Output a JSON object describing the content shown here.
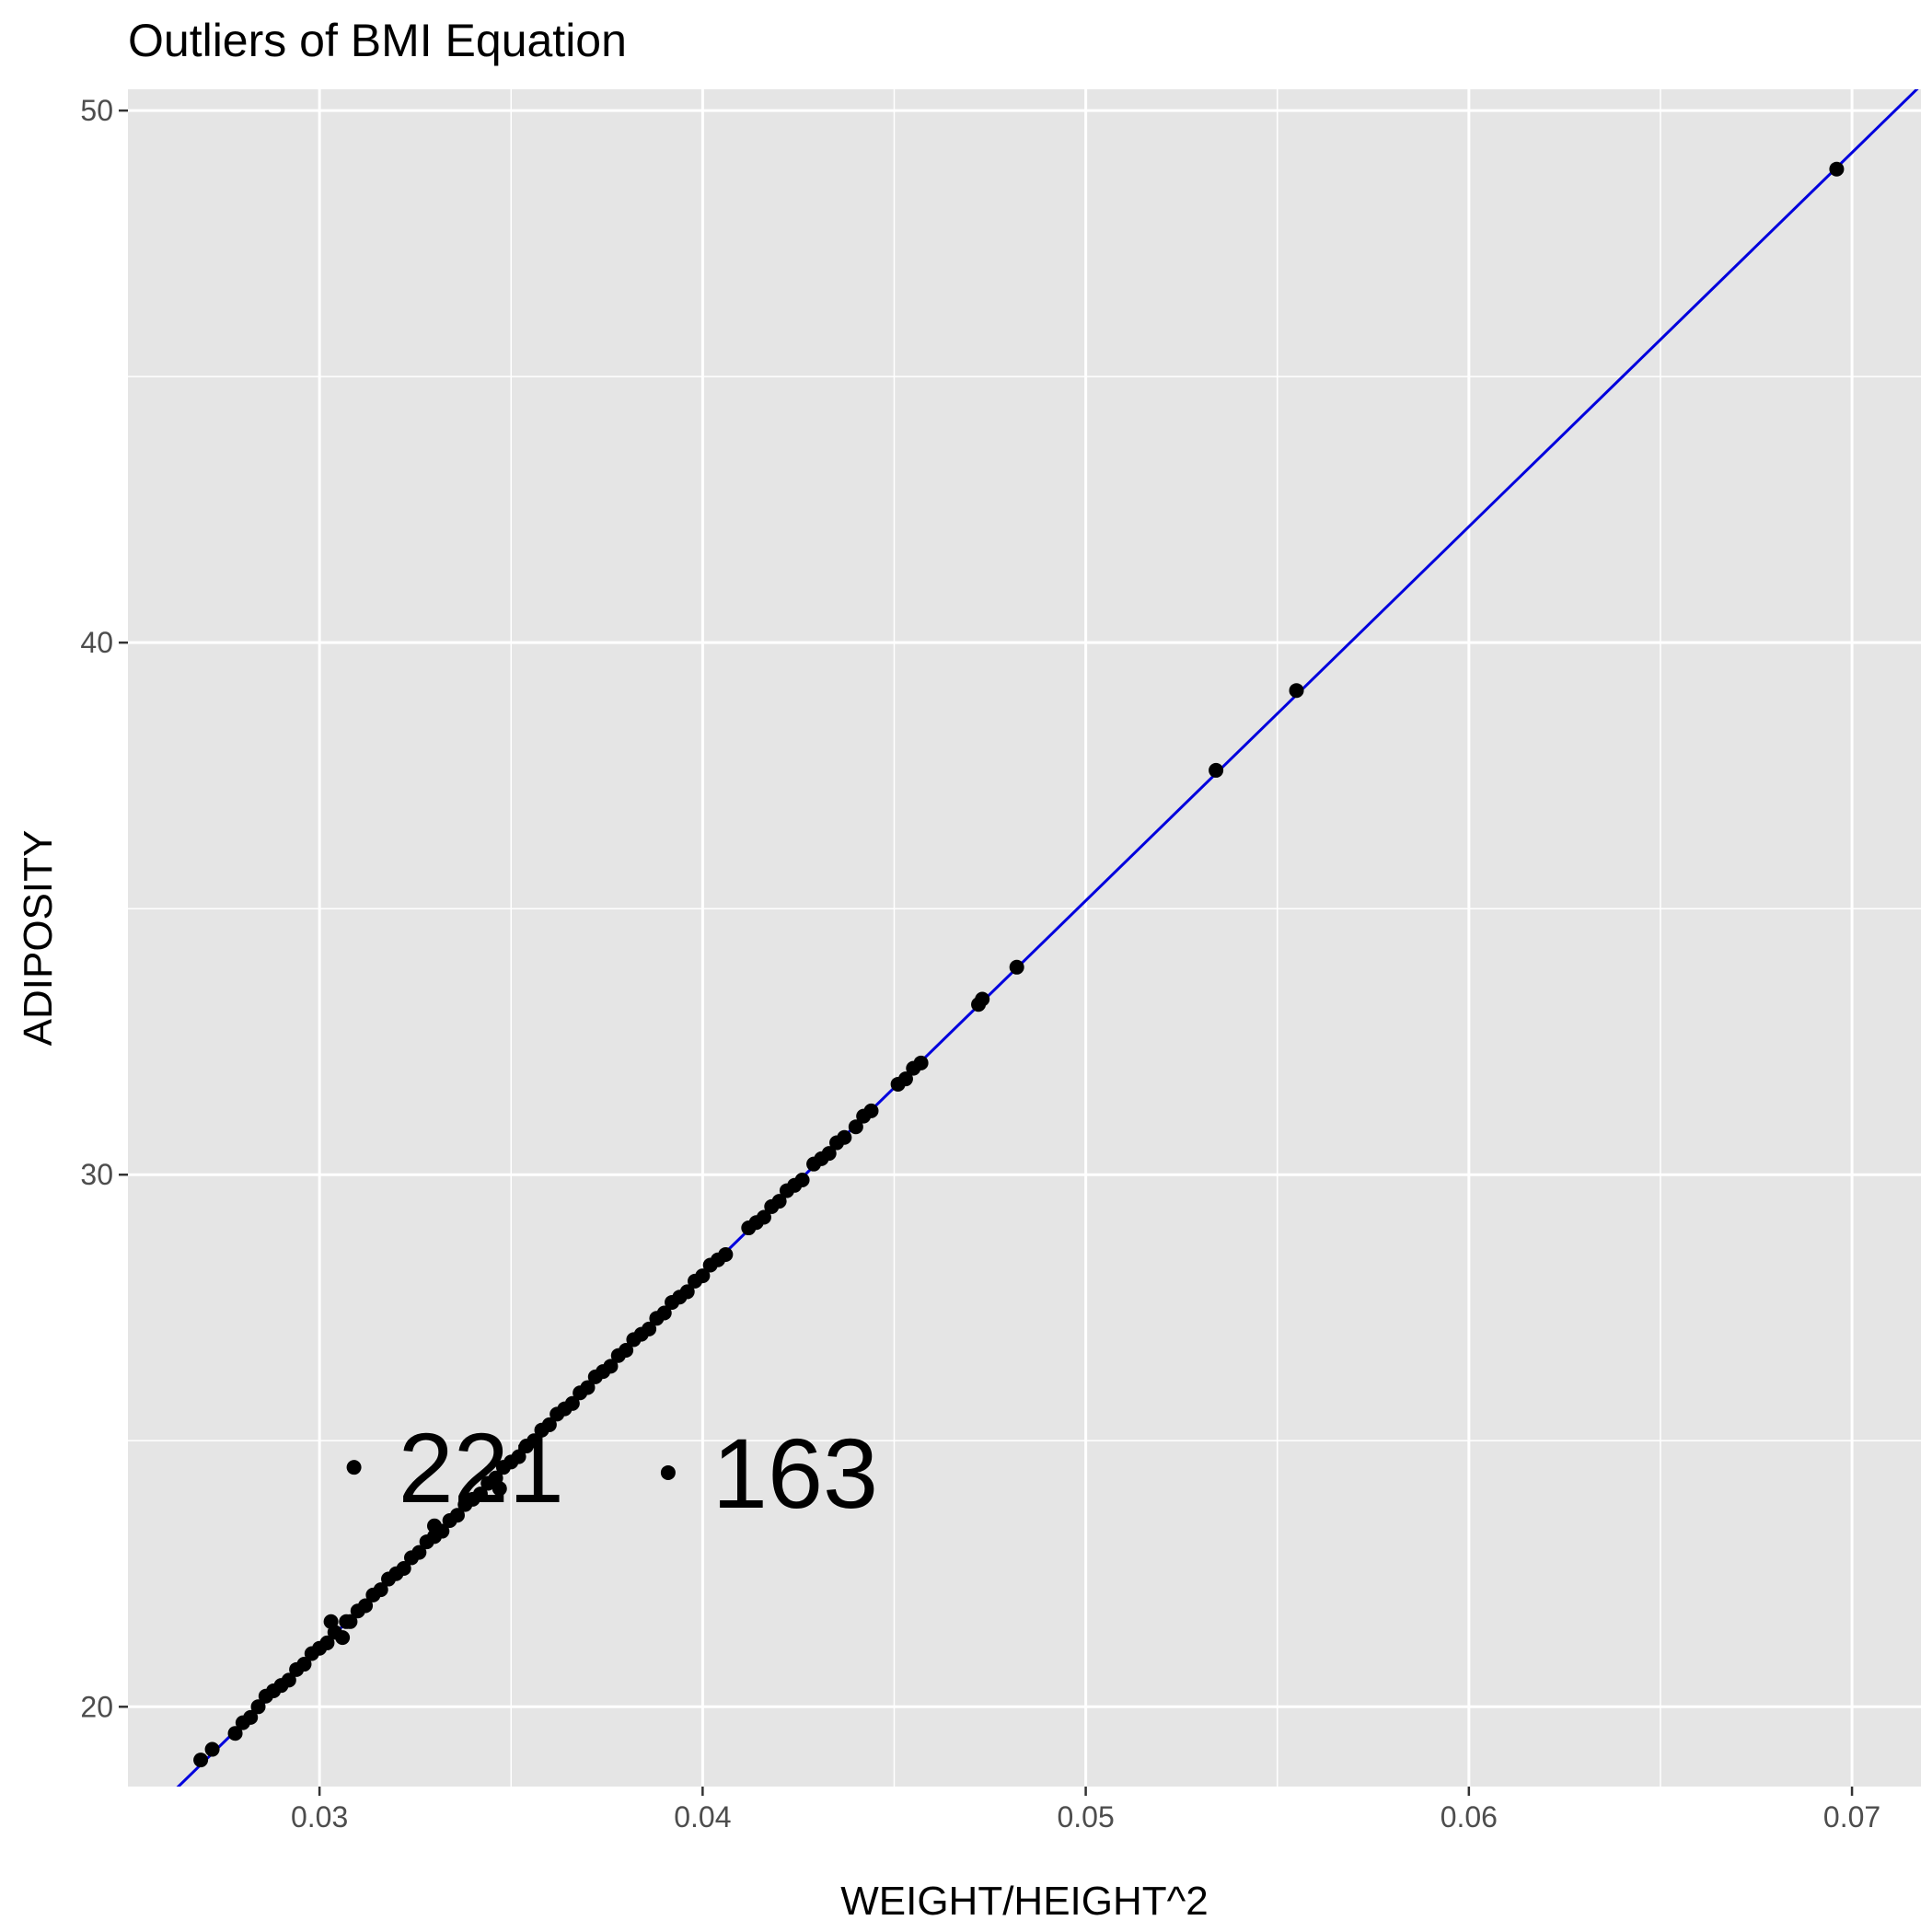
{
  "chart_data": {
    "type": "scatter",
    "title": "Outliers of BMI Equation",
    "xlabel": "WEIGHT/HEIGHT^2",
    "ylabel": "ADIPOSITY",
    "xlim": [
      0.025,
      0.0718
    ],
    "ylim": [
      18.5,
      50.4
    ],
    "x_ticks": [
      0.03,
      0.04,
      0.05,
      0.06,
      0.07
    ],
    "x_tick_labels": [
      "0.03",
      "0.04",
      "0.05",
      "0.06",
      "0.07"
    ],
    "y_ticks": [
      20,
      30,
      40,
      50
    ],
    "y_tick_labels": [
      "20",
      "30",
      "40",
      "50"
    ],
    "grid": true,
    "legend": "none",
    "colors": {
      "panel": "#e5e5e5",
      "grid": "#ffffff",
      "points": "#000000",
      "line": "#0000dd"
    },
    "reference_line": {
      "slope": 703,
      "intercept": 0
    },
    "points": [
      [
        0.0269,
        19.0
      ],
      [
        0.0272,
        19.2
      ],
      [
        0.0278,
        19.5
      ],
      [
        0.028,
        19.7
      ],
      [
        0.0282,
        19.8
      ],
      [
        0.0284,
        20.0
      ],
      [
        0.0286,
        20.2
      ],
      [
        0.0288,
        20.3
      ],
      [
        0.029,
        20.4
      ],
      [
        0.0292,
        20.5
      ],
      [
        0.0294,
        20.7
      ],
      [
        0.0296,
        20.8
      ],
      [
        0.0298,
        21.0
      ],
      [
        0.03,
        21.1
      ],
      [
        0.0302,
        21.2
      ],
      [
        0.0303,
        21.6
      ],
      [
        0.0304,
        21.4
      ],
      [
        0.0306,
        21.3
      ],
      [
        0.0307,
        21.6
      ],
      [
        0.0308,
        21.6
      ],
      [
        0.031,
        21.8
      ],
      [
        0.0312,
        21.9
      ],
      [
        0.0314,
        22.1
      ],
      [
        0.0316,
        22.2
      ],
      [
        0.0318,
        22.4
      ],
      [
        0.032,
        22.5
      ],
      [
        0.0322,
        22.6
      ],
      [
        0.0324,
        22.8
      ],
      [
        0.0326,
        22.9
      ],
      [
        0.0328,
        23.1
      ],
      [
        0.033,
        23.2
      ],
      [
        0.033,
        23.4
      ],
      [
        0.0332,
        23.3
      ],
      [
        0.0334,
        23.5
      ],
      [
        0.0336,
        23.6
      ],
      [
        0.0338,
        23.8
      ],
      [
        0.034,
        23.9
      ],
      [
        0.0342,
        24.0
      ],
      [
        0.0344,
        24.2
      ],
      [
        0.0346,
        24.3
      ],
      [
        0.0347,
        24.1
      ],
      [
        0.0348,
        24.5
      ],
      [
        0.035,
        24.6
      ],
      [
        0.0352,
        24.7
      ],
      [
        0.0354,
        24.9
      ],
      [
        0.0356,
        25.0
      ],
      [
        0.0358,
        25.2
      ],
      [
        0.036,
        25.3
      ],
      [
        0.0362,
        25.5
      ],
      [
        0.0364,
        25.6
      ],
      [
        0.0366,
        25.7
      ],
      [
        0.0368,
        25.9
      ],
      [
        0.037,
        26.0
      ],
      [
        0.0372,
        26.2
      ],
      [
        0.0374,
        26.3
      ],
      [
        0.0376,
        26.4
      ],
      [
        0.0378,
        26.6
      ],
      [
        0.038,
        26.7
      ],
      [
        0.0382,
        26.9
      ],
      [
        0.0384,
        27.0
      ],
      [
        0.0386,
        27.1
      ],
      [
        0.0388,
        27.3
      ],
      [
        0.039,
        27.4
      ],
      [
        0.0392,
        27.6
      ],
      [
        0.0394,
        27.7
      ],
      [
        0.0396,
        27.8
      ],
      [
        0.0398,
        28.0
      ],
      [
        0.04,
        28.1
      ],
      [
        0.0402,
        28.3
      ],
      [
        0.0404,
        28.4
      ],
      [
        0.0406,
        28.5
      ],
      [
        0.0412,
        29.0
      ],
      [
        0.0414,
        29.1
      ],
      [
        0.0416,
        29.2
      ],
      [
        0.0418,
        29.4
      ],
      [
        0.042,
        29.5
      ],
      [
        0.0422,
        29.7
      ],
      [
        0.0424,
        29.8
      ],
      [
        0.0426,
        29.9
      ],
      [
        0.0429,
        30.2
      ],
      [
        0.0431,
        30.3
      ],
      [
        0.0433,
        30.4
      ],
      [
        0.0435,
        30.6
      ],
      [
        0.0437,
        30.7
      ],
      [
        0.044,
        30.9
      ],
      [
        0.0442,
        31.1
      ],
      [
        0.0444,
        31.2
      ],
      [
        0.0451,
        31.7
      ],
      [
        0.0453,
        31.8
      ],
      [
        0.0455,
        32.0
      ],
      [
        0.0457,
        32.1
      ],
      [
        0.0472,
        33.2
      ],
      [
        0.0473,
        33.3
      ],
      [
        0.0482,
        33.9
      ],
      [
        0.0534,
        37.6
      ],
      [
        0.0555,
        39.1
      ],
      [
        0.0696,
        48.9
      ],
      [
        0.0309,
        24.5
      ],
      [
        0.0391,
        24.4
      ]
    ],
    "annotations": [
      {
        "x": 0.0309,
        "y": 24.5,
        "label": "221"
      },
      {
        "x": 0.0391,
        "y": 24.4,
        "label": "163"
      }
    ]
  }
}
